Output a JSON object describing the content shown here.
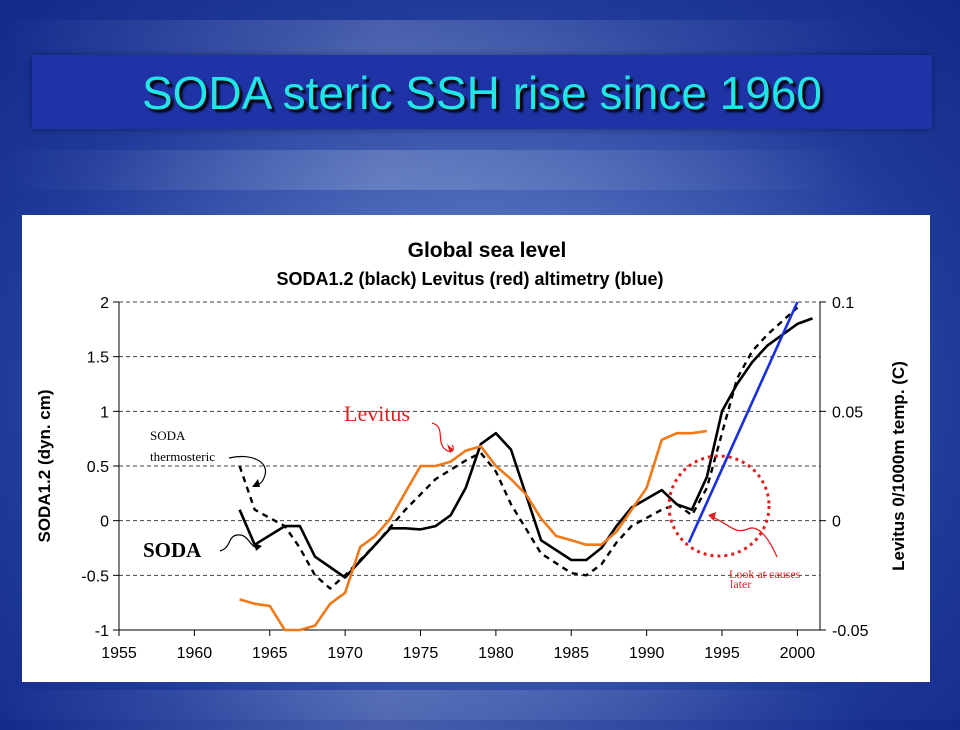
{
  "slide_title": "SODA steric SSH rise since 1960",
  "colors": {
    "title_text": "#22e6e6",
    "title_bar": "#1f33a6",
    "soda": "#000000",
    "levitus": "#f07a1a",
    "altimetry": "#1a2fe0",
    "annotation_red": "#e02020"
  },
  "chart_data": {
    "type": "line",
    "title": "Global sea level",
    "subtitle": "SODA1.2 (black) Levitus (red) altimetry (blue)",
    "ylabel": "SODA1.2 (dyn. cm)",
    "y2label": "Levitus 0/1000m temp. (C)",
    "xlim": [
      1955,
      2001.5
    ],
    "ylim": [
      -1,
      2
    ],
    "y2lim": [
      -0.05,
      0.1
    ],
    "x_ticks": [
      "1955",
      "1960",
      "1965",
      "1970",
      "1975",
      "1980",
      "1985",
      "1990",
      "1995",
      "2000"
    ],
    "y_ticks": [
      "2",
      "1.5",
      "1",
      "0.5",
      "0",
      "-0.5",
      "-1"
    ],
    "y2_ticks": [
      "0.1",
      "0.05",
      "0",
      "-0.05"
    ],
    "grid": "horizontal dashed",
    "series": [
      {
        "name": "SODA1.2",
        "axis": "left",
        "style": "solid",
        "color": "#000000",
        "x": [
          1963,
          1964,
          1966,
          1967,
          1968,
          1970,
          1973,
          1974,
          1975,
          1976,
          1977,
          1978,
          1979,
          1980,
          1981,
          1983,
          1985,
          1986,
          1987,
          1988,
          1989,
          1991,
          1992,
          1993,
          1994,
          1995,
          1996,
          1997,
          1998,
          2000,
          2001
        ],
        "y": [
          0.1,
          -0.22,
          -0.05,
          -0.05,
          -0.33,
          -0.52,
          -0.07,
          -0.07,
          -0.08,
          -0.05,
          0.05,
          0.3,
          0.7,
          0.8,
          0.65,
          -0.18,
          -0.36,
          -0.36,
          -0.25,
          -0.05,
          0.12,
          0.28,
          0.15,
          0.1,
          0.4,
          1.0,
          1.25,
          1.45,
          1.6,
          1.8,
          1.85
        ]
      },
      {
        "name": "SODA thermosteric",
        "axis": "left",
        "style": "dashed",
        "color": "#000000",
        "x": [
          1963,
          1964,
          1966,
          1967,
          1968,
          1969,
          1970,
          1972,
          1974,
          1976,
          1978,
          1979,
          1980,
          1981,
          1983,
          1985,
          1986,
          1987,
          1988,
          1989,
          1991,
          1992,
          1993,
          1994,
          1995,
          1996,
          1997,
          1998,
          2000
        ],
        "y": [
          0.5,
          0.1,
          -0.05,
          -0.25,
          -0.5,
          -0.62,
          -0.5,
          -0.22,
          0.1,
          0.38,
          0.55,
          0.62,
          0.45,
          0.15,
          -0.3,
          -0.48,
          -0.5,
          -0.4,
          -0.2,
          -0.05,
          0.1,
          0.15,
          0.05,
          0.3,
          0.8,
          1.3,
          1.55,
          1.7,
          1.95
        ]
      },
      {
        "name": "Levitus",
        "axis": "right",
        "style": "solid",
        "color": "#f07a1a",
        "x": [
          1963,
          1964,
          1965,
          1966,
          1967,
          1968,
          1969,
          1970,
          1971,
          1972,
          1973,
          1974,
          1975,
          1976,
          1977,
          1978,
          1979,
          1980,
          1981,
          1982,
          1983,
          1984,
          1985,
          1986,
          1987,
          1988,
          1989,
          1990,
          1991,
          1992,
          1993,
          1994
        ],
        "y": [
          -0.036,
          -0.038,
          -0.039,
          -0.05,
          -0.05,
          -0.048,
          -0.038,
          -0.033,
          -0.012,
          -0.007,
          0.001,
          0.013,
          0.025,
          0.025,
          0.027,
          0.032,
          0.034,
          0.025,
          0.019,
          0.012,
          0.001,
          -0.007,
          -0.009,
          -0.011,
          -0.011,
          -0.005,
          0.005,
          0.015,
          0.037,
          0.04,
          0.04,
          0.041
        ]
      },
      {
        "name": "altimetry",
        "axis": "left",
        "style": "solid",
        "color": "#1a2fe0",
        "x": [
          1992.8,
          2000.0
        ],
        "y": [
          -0.2,
          2.0
        ]
      }
    ]
  },
  "annotations": {
    "levitus_label": "Levitus",
    "soda_thermo_line1": "SODA",
    "soda_thermo_line2": "thermosteric",
    "soda_label": "SODA",
    "look_line1": "Look at causes",
    "look_line2": "later"
  }
}
